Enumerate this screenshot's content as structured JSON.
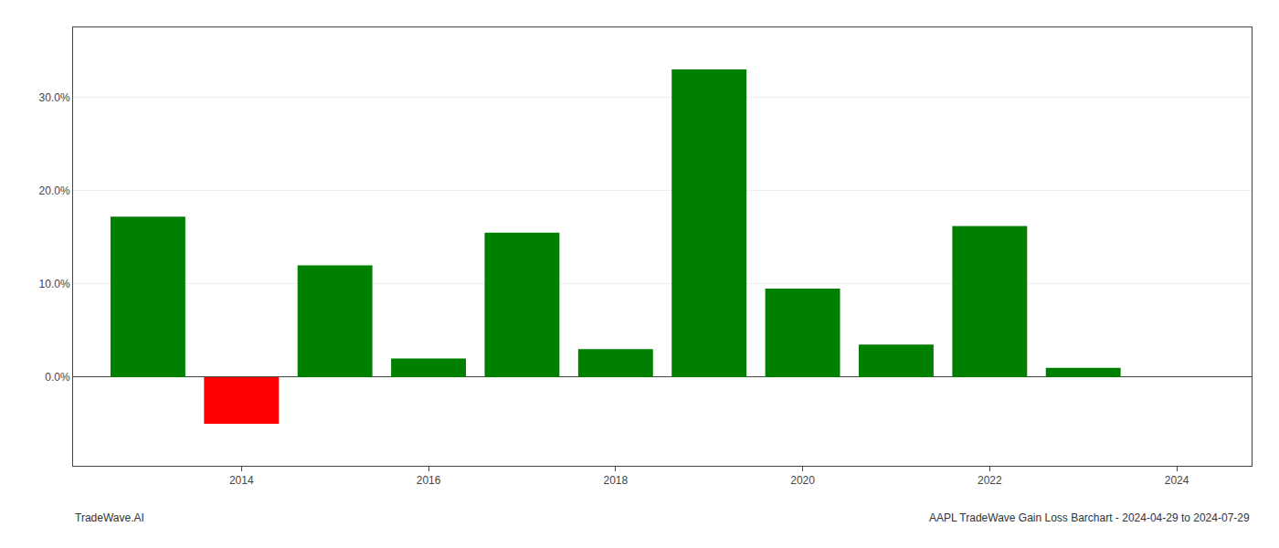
{
  "chart_data": {
    "type": "bar",
    "x": [
      2013,
      2014,
      2015,
      2016,
      2017,
      2018,
      2019,
      2020,
      2021,
      2022,
      2023
    ],
    "values": [
      0.172,
      -0.05,
      0.12,
      0.02,
      0.155,
      0.03,
      0.33,
      0.095,
      0.035,
      0.162,
      0.01
    ],
    "colors": [
      "#008000",
      "#ff0000",
      "#008000",
      "#008000",
      "#008000",
      "#008000",
      "#008000",
      "#008000",
      "#008000",
      "#008000",
      "#008000"
    ],
    "xlim": [
      2012.2,
      2024.8
    ],
    "xticks": [
      2014,
      2016,
      2018,
      2020,
      2022,
      2024
    ],
    "ylim": [
      -0.095,
      0.375
    ],
    "yticks": [
      {
        "value": 0.0,
        "label": "0.0%"
      },
      {
        "value": 0.1,
        "label": "10.0%"
      },
      {
        "value": 0.2,
        "label": "20.0%"
      },
      {
        "value": 0.3,
        "label": "30.0%"
      }
    ],
    "grid": true,
    "annotations": [
      "TradeWave.AI",
      "AAPL TradeWave Gain Loss Barchart - 2024-04-29 to 2024-07-29"
    ]
  }
}
